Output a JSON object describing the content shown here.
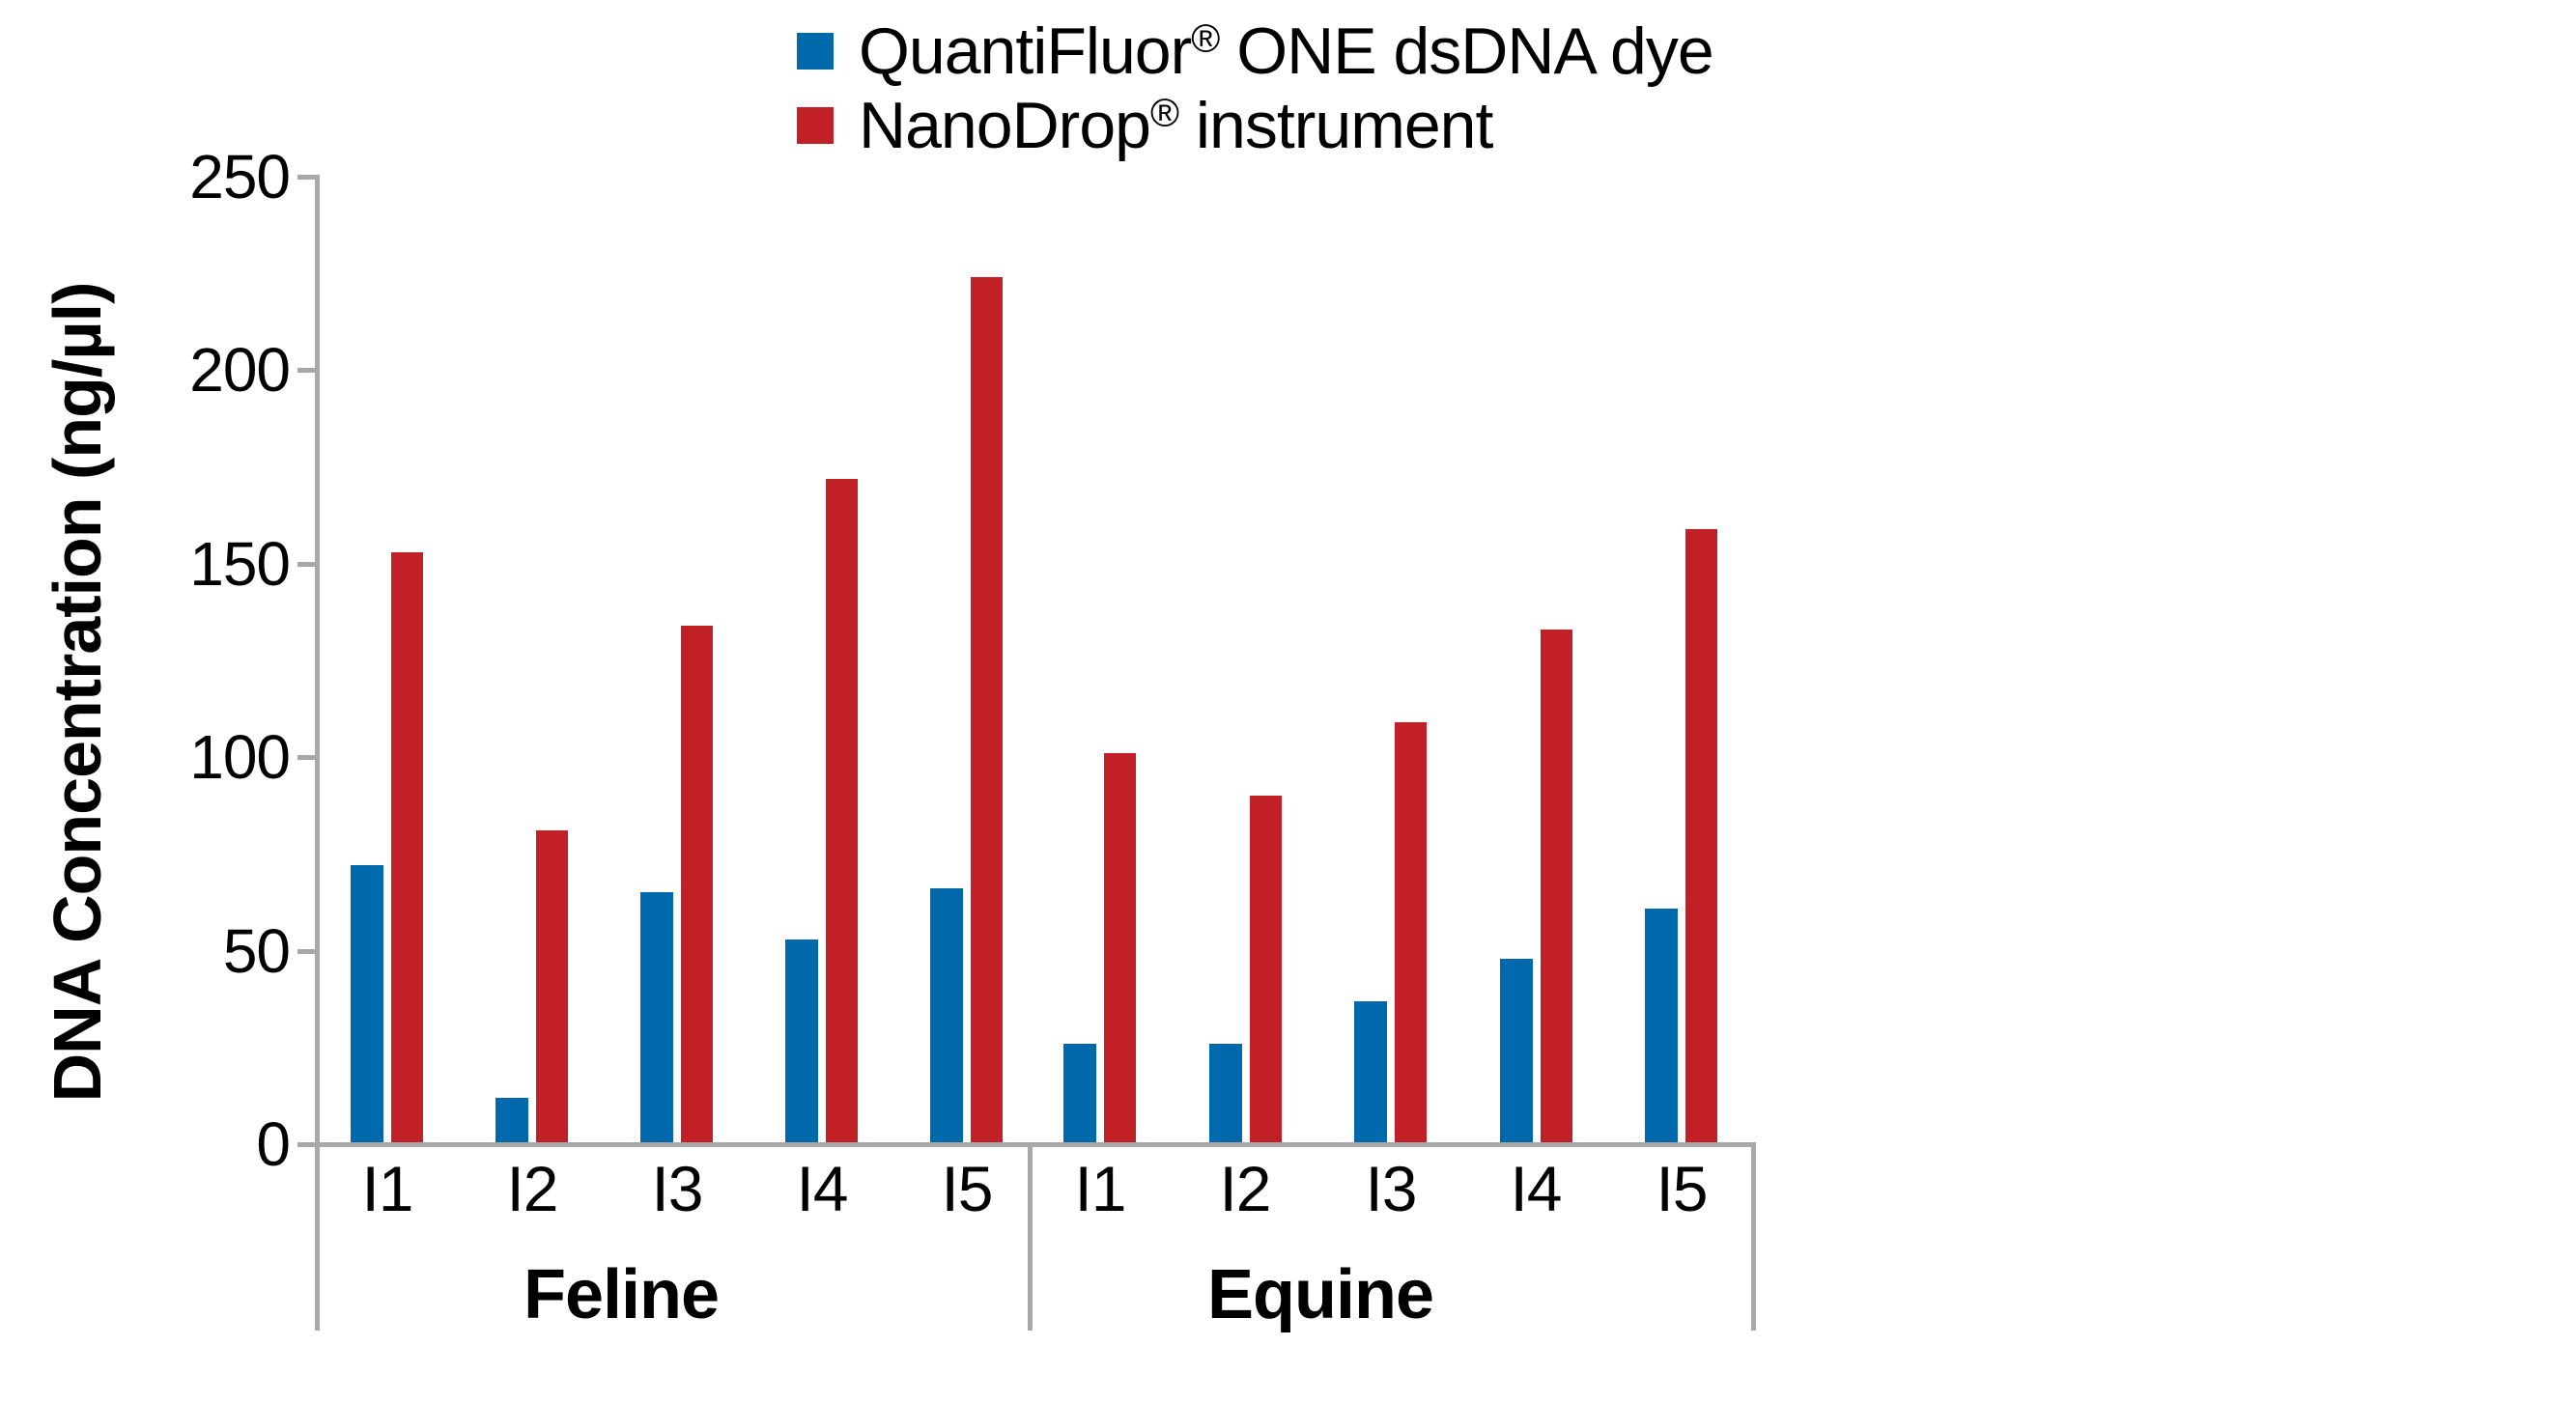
{
  "figure": {
    "ylabel": "DNA Concentration (ng/µl)"
  },
  "legend": {
    "items": [
      {
        "name_pre": "QuantiFluor",
        "reg": "®",
        "name_post": " ONE dsDNA dye",
        "color": "#0069AC"
      },
      {
        "name_pre": "NanoDrop",
        "reg": "®",
        "name_post": " instrument",
        "color": "#C02026"
      }
    ]
  },
  "chart_data": {
    "type": "bar",
    "title": "",
    "xlabel": "",
    "ylabel": "DNA Concentration (ng/µl)",
    "ylim": [
      0,
      250
    ],
    "yticks": [
      0,
      50,
      100,
      150,
      200,
      250
    ],
    "grid": false,
    "legend_position": "top-center",
    "axis_color": "#a8a8a8",
    "groups": [
      {
        "label": "Feline",
        "categories": [
          "I1",
          "I2",
          "I3",
          "I4",
          "I5"
        ]
      },
      {
        "label": "Equine",
        "categories": [
          "I1",
          "I2",
          "I3",
          "I4",
          "I5"
        ]
      }
    ],
    "series": [
      {
        "name": "QuantiFluor® ONE dsDNA dye",
        "color": "#0069AC",
        "values": [
          [
            72,
            12,
            65,
            53,
            66
          ],
          [
            26,
            26,
            37,
            48,
            61
          ]
        ]
      },
      {
        "name": "NanoDrop® instrument",
        "color": "#C02026",
        "values": [
          [
            153,
            81,
            134,
            172,
            224
          ],
          [
            101,
            90,
            109,
            133,
            159
          ]
        ]
      }
    ]
  }
}
